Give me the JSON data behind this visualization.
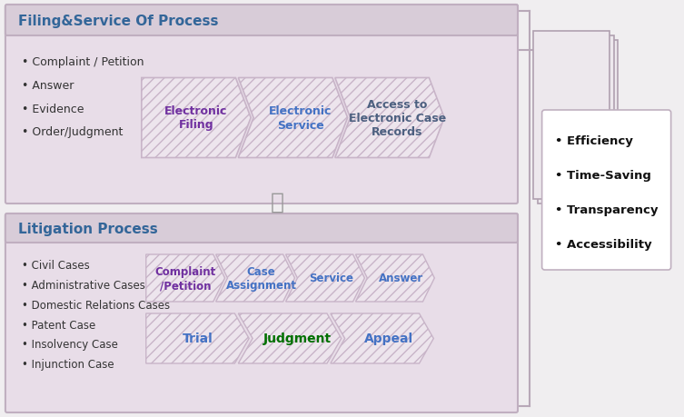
{
  "bg_color": "#f0eef0",
  "filing_title": "Filing&Service Of Process",
  "filing_title_color": "#336699",
  "filing_box_bg": "#e8dde8",
  "filing_box_border": "#c0afc0",
  "filing_title_bg": "#d8ccd8",
  "filing_bullets": [
    "Complaint / Petition",
    "Answer",
    "Evidence",
    "Order/Judgment"
  ],
  "filing_arrows": [
    {
      "label": "Electronic\nFiling",
      "color": "#7030a0"
    },
    {
      "label": "Electronic\nService",
      "color": "#4472c4"
    },
    {
      "label": "Access to\nElectronic Case\nRecords",
      "color": "#4d6080"
    }
  ],
  "litigation_title": "Litigation Process",
  "litigation_title_color": "#336699",
  "litigation_box_bg": "#e8dde8",
  "litigation_box_border": "#c0afc0",
  "litigation_title_bg": "#d8ccd8",
  "litigation_bullets": [
    "Civil Cases",
    "Administrative Cases",
    "Domestic Relations Cases",
    "Patent Case",
    "Insolvency Case",
    "Injunction Case"
  ],
  "litigation_row1_arrows": [
    {
      "label": "Complaint\n/Petition",
      "color": "#7030a0"
    },
    {
      "label": "Case\nAssignment",
      "color": "#4472c4"
    },
    {
      "label": "Service",
      "color": "#4472c4"
    },
    {
      "label": "Answer",
      "color": "#4472c4"
    }
  ],
  "litigation_row2_arrows": [
    {
      "label": "Trial",
      "color": "#4472c4"
    },
    {
      "label": "Judgment",
      "color": "#007000"
    },
    {
      "label": "Appeal",
      "color": "#4472c4"
    }
  ],
  "plus_color": "#999999",
  "benefits_box_bg": "#ffffff",
  "benefits_box_border": "#c0b0c0",
  "benefits_shadow_color": "#d0c0d0",
  "benefits_items": [
    "Efficiency",
    "Time-Saving",
    "Transparency",
    "Accessibility"
  ],
  "arrow_fill": "#ede5ed",
  "arrow_edge": "#c8b4c8",
  "connector_color": "#b8a8b8"
}
